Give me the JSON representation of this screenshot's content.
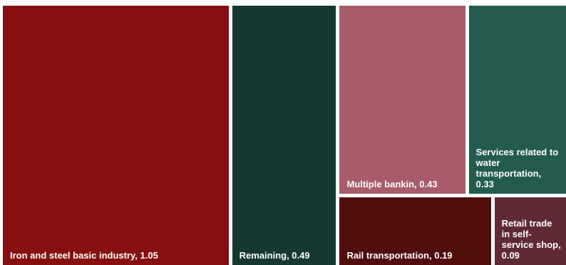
{
  "chart_data": {
    "type": "treemap",
    "title": "",
    "items": [
      {
        "label": "Iron and steel basic industry",
        "value": 1.05,
        "display": "1.05",
        "color": "#86100f"
      },
      {
        "label": "Remaining",
        "value": 0.49,
        "display": "0.49",
        "color": "#173831"
      },
      {
        "label": "Multiple bankin",
        "value": 0.43,
        "display": "0.43",
        "color": "#a85b68"
      },
      {
        "label": "Services related to water transportation",
        "value": 0.33,
        "display": "0.33",
        "color": "#235b4e"
      },
      {
        "label": "Rail transportation",
        "value": 0.19,
        "display": "0.19",
        "color": "#510c0c"
      },
      {
        "label": "Retail trade in self-service shop",
        "value": 0.09,
        "display": "0.09",
        "color": "#5f2a34"
      }
    ]
  }
}
